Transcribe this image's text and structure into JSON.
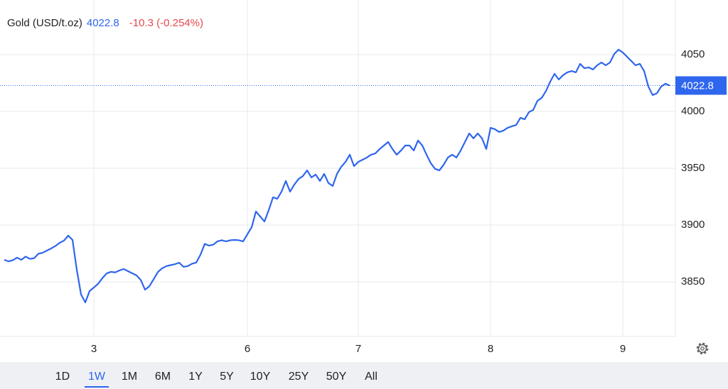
{
  "chart_data": {
    "type": "line",
    "title": "Gold (USD/t.oz)",
    "price": 4022.8,
    "change": "-10.3 (-0.254%)",
    "color": "#2f66ee",
    "price_color": "#2f66ee",
    "change_color": "#e5484d",
    "grid": true,
    "ylim": [
      3801.9,
      4098.1
    ],
    "yticks": [
      3850,
      3900,
      3950,
      4000,
      4050
    ],
    "categories": [
      null,
      null,
      null,
      null,
      null,
      null,
      null,
      null,
      null,
      null,
      null,
      null,
      null,
      null,
      null,
      null,
      null,
      null,
      null,
      null,
      null,
      "3",
      null,
      null,
      null,
      null,
      null,
      null,
      null,
      null,
      null,
      null,
      null,
      null,
      null,
      null,
      null,
      null,
      null,
      null,
      null,
      null,
      null,
      null,
      null,
      null,
      null,
      null,
      null,
      null,
      null,
      null,
      null,
      null,
      null,
      null,
      null,
      "6",
      null,
      null,
      null,
      null,
      null,
      null,
      null,
      null,
      null,
      null,
      null,
      null,
      null,
      null,
      null,
      null,
      null,
      null,
      null,
      null,
      null,
      null,
      null,
      null,
      null,
      "7",
      null,
      null,
      null,
      null,
      null,
      null,
      null,
      null,
      null,
      null,
      null,
      null,
      null,
      null,
      null,
      null,
      null,
      null,
      null,
      null,
      null,
      null,
      null,
      null,
      null,
      null,
      null,
      null,
      null,
      null,
      "8",
      null,
      null,
      null,
      null,
      null,
      null,
      null,
      null,
      null,
      null,
      null,
      null,
      null,
      null,
      null,
      null,
      null,
      null,
      null,
      null,
      null,
      null,
      null,
      null,
      null,
      null,
      null,
      null,
      null,
      null,
      "9",
      null,
      null,
      null,
      null,
      null,
      null,
      null,
      null,
      null,
      null,
      null
    ],
    "values": [
      3869.4,
      3868.0,
      3869.0,
      3871.3,
      3869.4,
      3872.2,
      3870.2,
      3870.8,
      3874.7,
      3875.6,
      3877.5,
      3879.4,
      3881.6,
      3884.4,
      3886.3,
      3890.7,
      3886.9,
      3860.6,
      3838.9,
      3831.9,
      3841.9,
      3845,
      3848.3,
      3853.2,
      3857.4,
      3858.8,
      3858.3,
      3860.0,
      3861.3,
      3859.4,
      3857.5,
      3855.7,
      3851.6,
      3843.1,
      3846.0,
      3852.2,
      3858.6,
      3861.9,
      3863.8,
      3864.7,
      3865.5,
      3866.9,
      3863.2,
      3863.8,
      3865.9,
      3866.9,
      3873.9,
      3883.4,
      3881.9,
      3882.7,
      3885.7,
      3886.6,
      3885.6,
      3886.6,
      3886.9,
      3886.6,
      3885.6,
      3891.9,
      3898.1,
      3911.9,
      3907.5,
      3903.1,
      3913.1,
      3924.4,
      3923.1,
      3929.4,
      3938.8,
      3929.4,
      3935.6,
      3940.6,
      3943.1,
      3948.1,
      3941.9,
      3944.4,
      3938.8,
      3945,
      3936.9,
      3934.4,
      3945,
      3951.3,
      3955.6,
      3961.9,
      3951.9,
      3955.6,
      3957.5,
      3959.4,
      3961.9,
      3963.1,
      3966.9,
      3970,
      3973.1,
      3966.9,
      3961.9,
      3965.6,
      3970,
      3970,
      3965.6,
      3974.4,
      3970,
      3961.9,
      3954.4,
      3949.4,
      3948.1,
      3953.1,
      3959.4,
      3961.9,
      3959.4,
      3965.6,
      3973.1,
      3980.6,
      3976.3,
      3980.6,
      3976.3,
      3966.9,
      3985.6,
      3984.4,
      3981.9,
      3983.1,
      3985.6,
      3986.9,
      3988.1,
      3994.4,
      3993.1,
      3999.4,
      4001.3,
      4009.4,
      4011.9,
      4018.1,
      4026.3,
      4033.1,
      4028.1,
      4031.9,
      4034.4,
      4035.6,
      4034.4,
      4041.9,
      4038.1,
      4038.8,
      4036.9,
      4040.6,
      4043.1,
      4040.6,
      4043.1,
      4050.6,
      4054.4,
      4051.9,
      4048.1,
      4044.4,
      4040.6,
      4041.9,
      4035.6,
      4021.9,
      4014.4,
      4016,
      4021.9,
      4024.4,
      4022.8
    ]
  },
  "toolbar": {
    "ranges": [
      "1D",
      "1W",
      "1M",
      "6M",
      "1Y",
      "5Y",
      "10Y",
      "25Y",
      "50Y",
      "All"
    ],
    "active": "1W"
  }
}
